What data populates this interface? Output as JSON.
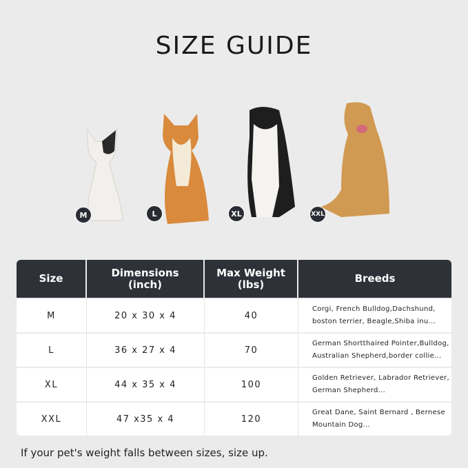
{
  "title": "SIZE GUIDE",
  "dogs": [
    {
      "badge": "M",
      "breed_shown": "French Bulldog"
    },
    {
      "badge": "L",
      "breed_shown": "Shiba Inu"
    },
    {
      "badge": "XL",
      "breed_shown": "Border Collie"
    },
    {
      "badge": "XXL",
      "breed_shown": "Golden Retriever"
    }
  ],
  "table": {
    "headers": [
      "Size",
      "Dimensions\n(inch)",
      "Max Weight\n(lbs)",
      "Breeds"
    ],
    "rows": [
      {
        "size": "M",
        "dimensions": "20 x 30 x 4",
        "max_weight": "40",
        "breeds": "Corgi, French Bulldog,Dachshund, boston terrier, Beagle,Shiba inu..."
      },
      {
        "size": "L",
        "dimensions": "36 x 27 x 4",
        "max_weight": "70",
        "breeds": "German Shortthaired Pointer,Bulldog, Australian Shepherd,border collie..."
      },
      {
        "size": "XL",
        "dimensions": "44 x 35 x 4",
        "max_weight": "100",
        "breeds": "Golden Retriever, Labrador Retriever, German Shepherd..."
      },
      {
        "size": "XXL",
        "dimensions": "47 x35 x 4",
        "max_weight": "120",
        "breeds": "Great Dane, Saint Bernard , Bernese Mountain Dog..."
      }
    ]
  },
  "note": "If your pet's weight falls between sizes, size up.",
  "colors": {
    "background": "#ebebeb",
    "header": "#2f3139"
  }
}
